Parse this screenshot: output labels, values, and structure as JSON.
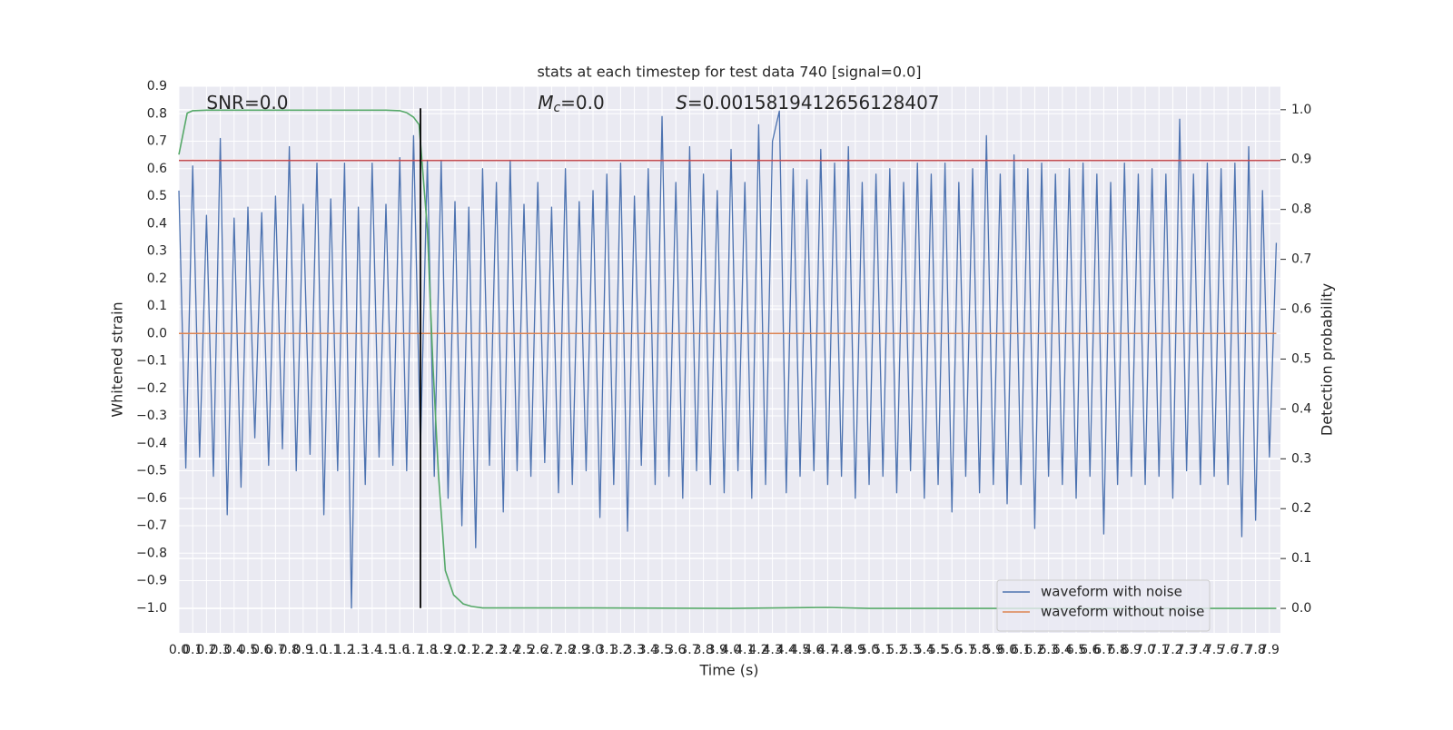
{
  "chart_data": {
    "type": "line",
    "title": "stats at each timestep for test data 740 [signal=0.0]",
    "xlabel": "Time (s)",
    "ylabel": "Whitened strain",
    "y2label": "Detection probability",
    "annotations": [
      {
        "text": "SNR=0.0",
        "x": 0.2
      },
      {
        "symbol": "M",
        "subscript": "c",
        "text": "=0.0",
        "x": 2.6
      },
      {
        "symbol": "S",
        "text": "=0.0015819412656128407",
        "x": 3.6
      }
    ],
    "xlim": [
      0,
      7.98
    ],
    "ylim": [
      -1.09,
      0.9
    ],
    "y2lim": [
      -0.049,
      1.047
    ],
    "grid": true,
    "background": "#eaeaf2",
    "legend_loc": "lower right",
    "xticks": [
      {
        "value": 0,
        "label": "0.0"
      },
      0.1,
      0.2,
      0.3,
      0.4,
      0.5,
      0.6,
      0.7,
      0.8,
      0.9,
      {
        "value": 1,
        "label": "1.0"
      },
      1.1,
      1.2,
      1.3,
      1.4,
      1.5,
      1.6,
      1.7,
      1.8,
      1.9,
      {
        "value": 2,
        "label": "2.0"
      },
      2.1,
      2.2,
      2.3,
      2.4,
      2.5,
      2.6,
      2.7,
      2.8,
      2.9,
      {
        "value": 3,
        "label": "3.0"
      },
      3.1,
      3.2,
      3.3,
      3.4,
      3.5,
      3.6,
      3.7,
      3.8,
      3.9,
      {
        "value": 4,
        "label": "4.0"
      },
      4.1,
      4.2,
      4.3,
      4.4,
      4.5,
      4.6,
      4.7,
      4.8,
      4.9,
      {
        "value": 5,
        "label": "5.0"
      },
      5.1,
      5.2,
      5.3,
      5.4,
      5.5,
      5.6,
      5.7,
      5.8,
      5.9,
      {
        "value": 6,
        "label": "6.0"
      },
      6.1,
      6.2,
      6.3,
      6.4,
      6.5,
      6.6,
      6.7,
      6.8,
      6.9,
      {
        "value": 7,
        "label": "7.0"
      },
      7.1,
      7.2,
      7.3,
      7.4,
      7.5,
      7.6,
      7.7,
      7.8,
      7.9
    ],
    "yticks": [
      {
        "value": -1,
        "label": "−1.0"
      },
      {
        "value": -0.9,
        "label": "−0.9"
      },
      {
        "value": -0.8,
        "label": "−0.8"
      },
      {
        "value": -0.7,
        "label": "−0.7"
      },
      {
        "value": -0.6,
        "label": "−0.6"
      },
      {
        "value": -0.5,
        "label": "−0.5"
      },
      {
        "value": -0.4,
        "label": "−0.4"
      },
      {
        "value": -0.3,
        "label": "−0.3"
      },
      {
        "value": -0.2,
        "label": "−0.2"
      },
      {
        "value": -0.1,
        "label": "−0.1"
      },
      {
        "value": 0,
        "label": "0.0"
      },
      0.1,
      0.2,
      0.3,
      0.4,
      0.5,
      0.6,
      0.7,
      0.8,
      0.9
    ],
    "y2ticks": [
      {
        "value": 0,
        "label": "0.0"
      },
      0.1,
      0.2,
      0.3,
      0.4,
      0.5,
      0.6,
      0.7,
      0.8,
      0.9,
      {
        "value": 1,
        "label": "1.0"
      }
    ],
    "hlines": [
      {
        "y": 0.63,
        "color": "#c44e52"
      }
    ],
    "vlines": [
      {
        "x": 1.75,
        "ymin": -1.0,
        "ymax": 0.82,
        "color": "#000000"
      }
    ],
    "series": [
      {
        "name": "waveform with noise",
        "color": "#4c72b0",
        "x": [
          0,
          0.05,
          0.1,
          0.15,
          0.2,
          0.25,
          0.3,
          0.35,
          0.4,
          0.45,
          0.5,
          0.55,
          0.6,
          0.65,
          0.7,
          0.75,
          0.8,
          0.85,
          0.9,
          0.95,
          1.0,
          1.05,
          1.1,
          1.15,
          1.2,
          1.25,
          1.3,
          1.35,
          1.4,
          1.45,
          1.5,
          1.55,
          1.6,
          1.65,
          1.7,
          1.75,
          1.8,
          1.85,
          1.9,
          1.95,
          2.0,
          2.05,
          2.1,
          2.15,
          2.2,
          2.25,
          2.3,
          2.35,
          2.4,
          2.45,
          2.5,
          2.55,
          2.6,
          2.65,
          2.7,
          2.75,
          2.8,
          2.85,
          2.9,
          2.95,
          3.0,
          3.05,
          3.1,
          3.15,
          3.2,
          3.25,
          3.3,
          3.35,
          3.4,
          3.45,
          3.5,
          3.55,
          3.6,
          3.65,
          3.7,
          3.75,
          3.8,
          3.85,
          3.9,
          3.95,
          4.0,
          4.05,
          4.1,
          4.15,
          4.2,
          4.25,
          4.3,
          4.35,
          4.4,
          4.45,
          4.5,
          4.55,
          4.6,
          4.65,
          4.7,
          4.75,
          4.8,
          4.85,
          4.9,
          4.95,
          5.0,
          5.05,
          5.1,
          5.15,
          5.2,
          5.25,
          5.3,
          5.35,
          5.4,
          5.45,
          5.5,
          5.55,
          5.6,
          5.65,
          5.7,
          5.75,
          5.8,
          5.85,
          5.9,
          5.95,
          6.0,
          6.05,
          6.1,
          6.15,
          6.2,
          6.25,
          6.3,
          6.35,
          6.4,
          6.45,
          6.5,
          6.55,
          6.6,
          6.65,
          6.7,
          6.75,
          6.8,
          6.85,
          6.9,
          6.95,
          7.0,
          7.05,
          7.1,
          7.15,
          7.2,
          7.25,
          7.3,
          7.35,
          7.4,
          7.45,
          7.5,
          7.55,
          7.6,
          7.65,
          7.7,
          7.75,
          7.8,
          7.85,
          7.9,
          7.95
        ],
        "values": [
          0.52,
          -0.49,
          0.61,
          -0.45,
          0.43,
          -0.52,
          0.71,
          -0.66,
          0.42,
          -0.56,
          0.46,
          -0.38,
          0.44,
          -0.48,
          0.5,
          -0.42,
          0.68,
          -0.5,
          0.47,
          -0.44,
          0.62,
          -0.66,
          0.49,
          -0.5,
          0.62,
          -1.0,
          0.46,
          -0.55,
          0.62,
          -0.45,
          0.47,
          -0.48,
          0.64,
          -0.5,
          0.72,
          -0.42,
          0.63,
          -0.52,
          0.63,
          -0.6,
          0.48,
          -0.7,
          0.46,
          -0.78,
          0.6,
          -0.48,
          0.55,
          -0.65,
          0.63,
          -0.5,
          0.47,
          -0.52,
          0.55,
          -0.47,
          0.46,
          -0.58,
          0.6,
          -0.55,
          0.48,
          -0.5,
          0.52,
          -0.67,
          0.58,
          -0.55,
          0.62,
          -0.72,
          0.5,
          -0.48,
          0.6,
          -0.55,
          0.79,
          -0.52,
          0.55,
          -0.6,
          0.68,
          -0.5,
          0.58,
          -0.55,
          0.52,
          -0.58,
          0.67,
          -0.5,
          0.55,
          -0.6,
          0.76,
          -0.55,
          0.7,
          0.81,
          -0.58,
          0.6,
          -0.52,
          0.56,
          -0.5,
          0.67,
          -0.55,
          0.62,
          -0.52,
          0.68,
          -0.6,
          0.55,
          -0.55,
          0.58,
          -0.52,
          0.6,
          -0.58,
          0.55,
          -0.5,
          0.62,
          -0.6,
          0.58,
          -0.55,
          0.62,
          -0.65,
          0.55,
          -0.52,
          0.6,
          -0.58,
          0.72,
          -0.55,
          0.58,
          -0.62,
          0.65,
          -0.55,
          0.6,
          -0.71,
          0.62,
          -0.52,
          0.58,
          -0.55,
          0.6,
          -0.6,
          0.62,
          -0.52,
          0.58,
          -0.73,
          0.55,
          -0.55,
          0.62,
          -0.52,
          0.58,
          -0.55,
          0.6,
          -0.52,
          0.58,
          -0.6,
          0.78,
          -0.5,
          0.58,
          -0.55,
          0.62,
          -0.52,
          0.6,
          -0.55,
          0.62,
          -0.74,
          0.68,
          -0.68,
          0.52,
          -0.45,
          0.33
        ]
      },
      {
        "name": "waveform without noise",
        "color": "#dd8452",
        "x": [
          0,
          7.95
        ],
        "values": [
          0,
          0
        ]
      },
      {
        "color": "#55a868",
        "axis": "y2",
        "x": [
          0,
          0.06,
          0.1,
          0.2,
          0.5,
          1.0,
          1.5,
          1.6,
          1.65,
          1.7,
          1.74,
          1.8,
          1.84,
          1.88,
          1.93,
          1.99,
          2.06,
          2.12,
          2.2,
          3.0,
          4.0,
          4.7,
          5.0,
          6.0,
          7.0,
          7.95
        ],
        "values": [
          0.91,
          0.993,
          0.998,
          0.999,
          0.999,
          0.999,
          0.999,
          0.998,
          0.994,
          0.985,
          0.97,
          0.76,
          0.49,
          0.27,
          0.076,
          0.027,
          0.009,
          0.004,
          0.001,
          0.001,
          0.0,
          0.002,
          0.0,
          0.0,
          0.0,
          0.0
        ]
      }
    ]
  }
}
